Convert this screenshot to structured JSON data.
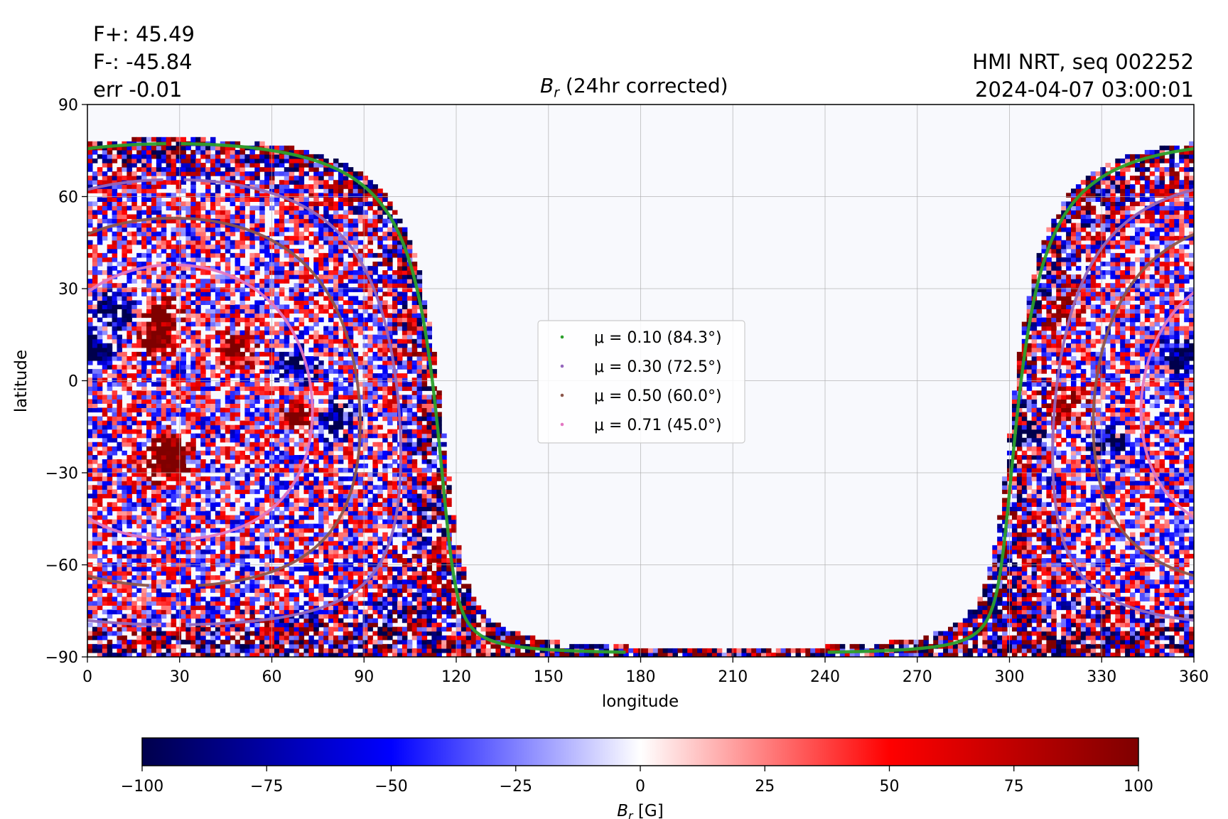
{
  "header": {
    "flux_pos": "F+: 45.49",
    "flux_neg": "F-: -45.84",
    "flux_err": "err -0.01",
    "source": "HMI NRT, seq 002252",
    "timestamp": "2024-04-07 03:00:01"
  },
  "chart_data": {
    "type": "heatmap",
    "title": "B_r (24hr corrected)",
    "title_symbol": "B",
    "title_subscript": "r",
    "title_rest": " (24hr corrected)",
    "xlabel": "longitude",
    "ylabel": "latitude",
    "xlim": [
      0,
      360
    ],
    "ylim": [
      -90,
      90
    ],
    "xticks": [
      0,
      30,
      60,
      90,
      120,
      150,
      180,
      210,
      240,
      270,
      300,
      330,
      360
    ],
    "yticks": [
      90,
      60,
      30,
      0,
      -30,
      -60,
      -90
    ],
    "ytick_labels": [
      "90",
      "60",
      "30",
      "0",
      "−30",
      "−60",
      "−90"
    ],
    "grid": true,
    "disk_center_longitude": 28,
    "disk_center_latitude": -7,
    "legend": {
      "placement": "center",
      "entries": [
        {
          "label": "μ = 0.10 (84.3°)",
          "mu": 0.1,
          "angle_deg": 84.3,
          "color": "#2ca02c"
        },
        {
          "label": "μ = 0.30 (72.5°)",
          "mu": 0.3,
          "angle_deg": 72.5,
          "color": "#9467bd"
        },
        {
          "label": "μ = 0.50 (60.0°)",
          "mu": 0.5,
          "angle_deg": 60.0,
          "color": "#8c564b"
        },
        {
          "label": "μ = 0.71 (45.0°)",
          "mu": 0.71,
          "angle_deg": 45.0,
          "color": "#e377c2"
        }
      ]
    },
    "active_regions": [
      {
        "lon": 2,
        "lat": 9,
        "sign": -1
      },
      {
        "lon": 8,
        "lat": 22,
        "sign": -1
      },
      {
        "lon": 25,
        "lat": 22,
        "sign": 1
      },
      {
        "lon": 22,
        "lat": 14,
        "sign": 1
      },
      {
        "lon": 27,
        "lat": -22,
        "sign": 1
      },
      {
        "lon": 26,
        "lat": -28,
        "sign": 1
      },
      {
        "lon": 48,
        "lat": 10,
        "sign": 1
      },
      {
        "lon": 68,
        "lat": 5,
        "sign": -1
      },
      {
        "lon": 80,
        "lat": -13,
        "sign": -1
      },
      {
        "lon": 70,
        "lat": -12,
        "sign": 1
      },
      {
        "lon": 310,
        "lat": 25,
        "sign": -1
      },
      {
        "lon": 316,
        "lat": 24,
        "sign": 1
      },
      {
        "lon": 318,
        "lat": -8,
        "sign": 1
      },
      {
        "lon": 305,
        "lat": -18,
        "sign": -1
      },
      {
        "lon": 333,
        "lat": -20,
        "sign": -1
      },
      {
        "lon": 355,
        "lat": 8,
        "sign": -1
      },
      {
        "lon": 300,
        "lat": 10,
        "sign": 1
      }
    ],
    "colorbar": {
      "label": "B_r [G]",
      "label_symbol": "B",
      "label_subscript": "r",
      "label_rest": " [G]",
      "range": [
        -100,
        100
      ],
      "ticks": [
        -100,
        -75,
        -50,
        -25,
        0,
        25,
        50,
        75,
        100
      ],
      "tick_labels": [
        "−100",
        "−75",
        "−50",
        "−25",
        "0",
        "25",
        "50",
        "75",
        "100"
      ],
      "colors": [
        "#00004c",
        "#0000ff",
        "#ffffff",
        "#ff0000",
        "#7f0000"
      ]
    }
  }
}
